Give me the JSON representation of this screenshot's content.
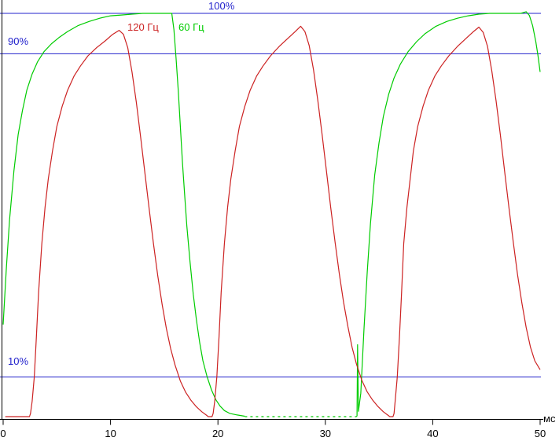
{
  "labels": {
    "line_100": "100%",
    "line_90": "90%",
    "line_10": "10%",
    "axis_unit": "мс"
  },
  "legend": {
    "red": "120 Гц",
    "green": "60 Гц"
  },
  "colors": {
    "reference": "#2222cc",
    "green_series": "#00cc00",
    "red_series": "#cc2222",
    "axis": "#000000"
  },
  "chart_data": {
    "type": "line",
    "title": "",
    "xlabel": "мс",
    "ylabel": "%",
    "x_range": [
      0,
      50
    ],
    "x_ticks": [
      0,
      10,
      20,
      30,
      40,
      50
    ],
    "grid": false,
    "legend_position": "top-left-inline",
    "reference_lines_pct": [
      100,
      90,
      10
    ],
    "series": [
      {
        "id": "60hz",
        "name": "60 Гц",
        "color": "#00cc00",
        "segments": [
          {
            "dash": null,
            "points": [
              [
                0,
                23
              ],
              [
                0.3,
                37
              ],
              [
                0.6,
                49
              ],
              [
                1,
                61
              ],
              [
                1.4,
                70
              ],
              [
                1.8,
                76
              ],
              [
                2.2,
                81
              ],
              [
                2.7,
                85
              ],
              [
                3.2,
                88
              ],
              [
                3.8,
                90.5
              ],
              [
                4.5,
                92.5
              ],
              [
                5.2,
                94
              ],
              [
                6,
                95.5
              ],
              [
                7,
                97
              ],
              [
                8,
                98
              ],
              [
                9,
                98.8
              ],
              [
                10,
                99.4
              ],
              [
                11,
                99.6
              ],
              [
                12,
                99.8
              ],
              [
                13,
                100
              ],
              [
                14,
                100
              ],
              [
                15,
                100
              ],
              [
                15.7,
                100
              ],
              [
                15.9,
                96
              ],
              [
                16.1,
                89
              ],
              [
                16.3,
                81
              ],
              [
                16.5,
                72
              ],
              [
                16.7,
                63
              ],
              [
                16.9,
                55
              ],
              [
                17.1,
                47.5
              ],
              [
                17.4,
                38.5
              ],
              [
                17.7,
                30.5
              ],
              [
                18,
                24
              ],
              [
                18.3,
                18.5
              ],
              [
                18.6,
                14
              ],
              [
                19,
                10
              ],
              [
                19.4,
                6.8
              ],
              [
                19.8,
                4.4
              ],
              [
                20.2,
                2.8
              ],
              [
                20.6,
                1.7
              ],
              [
                21.1,
                1
              ],
              [
                21.8,
                0.6
              ],
              [
                22.5,
                0.3
              ]
            ]
          },
          {
            "dash": "3,4",
            "points": [
              [
                22.5,
                0.2
              ],
              [
                24,
                0.2
              ],
              [
                26,
                0.2
              ],
              [
                28,
                0.2
              ],
              [
                30,
                0.2
              ],
              [
                32,
                0.2
              ],
              [
                32.9,
                0.2
              ]
            ]
          },
          {
            "dash": null,
            "points": [
              [
                32.9,
                0.2
              ],
              [
                32.95,
                0.4
              ],
              [
                33.0,
                18
              ],
              [
                33.08,
                1.5
              ],
              [
                33.3,
                6
              ],
              [
                33.6,
                22
              ],
              [
                33.9,
                36
              ],
              [
                34.2,
                48
              ],
              [
                34.6,
                60
              ],
              [
                35,
                68
              ],
              [
                35.4,
                74.5
              ],
              [
                35.9,
                80
              ],
              [
                36.4,
                84
              ],
              [
                37,
                87.5
              ],
              [
                37.7,
                90.5
              ],
              [
                38.5,
                93
              ],
              [
                39.3,
                95
              ],
              [
                40.3,
                96.8
              ],
              [
                41.3,
                98
              ],
              [
                42.3,
                98.8
              ],
              [
                43.3,
                99.4
              ],
              [
                44.3,
                99.8
              ],
              [
                45.3,
                100
              ],
              [
                46.3,
                100
              ],
              [
                47.3,
                100
              ],
              [
                48.2,
                100
              ],
              [
                48.7,
                100.4
              ],
              [
                49,
                99.5
              ],
              [
                49.3,
                97
              ],
              [
                49.6,
                93
              ],
              [
                49.8,
                89.5
              ],
              [
                50,
                85.5
              ]
            ]
          }
        ]
      },
      {
        "id": "120hz",
        "name": "120 Гц",
        "color": "#cc2222",
        "segments": [
          {
            "dash": null,
            "points": [
              [
                0.2,
                0.2
              ],
              [
                1,
                0.2
              ],
              [
                2,
                0.2
              ],
              [
                2.45,
                0.2
              ],
              [
                2.55,
                1
              ],
              [
                2.7,
                4
              ],
              [
                2.9,
                10
              ],
              [
                3.1,
                20
              ],
              [
                3.3,
                31
              ],
              [
                3.6,
                43
              ],
              [
                3.9,
                52
              ],
              [
                4.2,
                59
              ],
              [
                4.6,
                66
              ],
              [
                5,
                72
              ],
              [
                5.5,
                77
              ],
              [
                6,
                81
              ],
              [
                6.6,
                84.5
              ],
              [
                7.2,
                87
              ],
              [
                7.9,
                89.5
              ],
              [
                8.7,
                91.5
              ],
              [
                9.5,
                93.2
              ],
              [
                10.2,
                94.8
              ],
              [
                10.8,
                95.8
              ],
              [
                11.2,
                94.8
              ],
              [
                11.6,
                91.5
              ],
              [
                12,
                85.5
              ],
              [
                12.4,
                78
              ],
              [
                12.8,
                69.5
              ],
              [
                13.2,
                60.5
              ],
              [
                13.6,
                51.5
              ],
              [
                14,
                43
              ],
              [
                14.4,
                35
              ],
              [
                14.8,
                28
              ],
              [
                15.2,
                22
              ],
              [
                15.6,
                17
              ],
              [
                16,
                13
              ],
              [
                16.5,
                9
              ],
              [
                17,
                6.2
              ],
              [
                17.5,
                4.2
              ],
              [
                18,
                2.6
              ],
              [
                18.5,
                1.4
              ],
              [
                18.9,
                0.6
              ],
              [
                19.1,
                0.2
              ],
              [
                19.45,
                0.2
              ],
              [
                19.55,
                1
              ],
              [
                19.7,
                4
              ],
              [
                19.9,
                10
              ],
              [
                20.1,
                20
              ],
              [
                20.3,
                31
              ],
              [
                20.6,
                43
              ],
              [
                20.9,
                52
              ],
              [
                21.2,
                59
              ],
              [
                21.6,
                66
              ],
              [
                22,
                72
              ],
              [
                22.5,
                77
              ],
              [
                23,
                81
              ],
              [
                23.6,
                84.5
              ],
              [
                24.2,
                87
              ],
              [
                24.9,
                89.5
              ],
              [
                25.7,
                91.8
              ],
              [
                26.5,
                93.8
              ],
              [
                27.2,
                95.5
              ],
              [
                27.7,
                96.8
              ],
              [
                28.1,
                95.5
              ],
              [
                28.5,
                92
              ],
              [
                28.9,
                86
              ],
              [
                29.3,
                78.5
              ],
              [
                29.7,
                70
              ],
              [
                30.1,
                61
              ],
              [
                30.5,
                52
              ],
              [
                30.9,
                43.5
              ],
              [
                31.3,
                35.5
              ],
              [
                31.7,
                28.5
              ],
              [
                32.1,
                22.5
              ],
              [
                32.5,
                17.3
              ],
              [
                32.9,
                13.2
              ],
              [
                33.4,
                9.2
              ],
              [
                33.9,
                6.3
              ],
              [
                34.4,
                4.3
              ],
              [
                34.9,
                2.7
              ],
              [
                35.4,
                1.4
              ],
              [
                35.8,
                0.6
              ],
              [
                36,
                0.2
              ],
              [
                36.3,
                0.2
              ],
              [
                36.4,
                1
              ],
              [
                36.5,
                4
              ],
              [
                36.7,
                10
              ],
              [
                36.9,
                20
              ],
              [
                37.1,
                31
              ],
              [
                37.3,
                43
              ],
              [
                37.6,
                52
              ],
              [
                37.9,
                59
              ],
              [
                38.2,
                66
              ],
              [
                38.6,
                72
              ],
              [
                39.1,
                77
              ],
              [
                39.6,
                81
              ],
              [
                40.2,
                84.5
              ],
              [
                40.8,
                87
              ],
              [
                41.5,
                89.5
              ],
              [
                42.3,
                91.8
              ],
              [
                43.1,
                93.8
              ],
              [
                43.8,
                95.5
              ],
              [
                44.3,
                96.6
              ],
              [
                44.7,
                95.3
              ],
              [
                45.1,
                91.8
              ],
              [
                45.5,
                85.8
              ],
              [
                45.9,
                78.3
              ],
              [
                46.3,
                69.8
              ],
              [
                46.7,
                60.8
              ],
              [
                47.1,
                51.8
              ],
              [
                47.5,
                43.3
              ],
              [
                47.9,
                35.3
              ],
              [
                48.3,
                28.3
              ],
              [
                48.7,
                22.3
              ],
              [
                49.1,
                17.4
              ],
              [
                49.5,
                14
              ],
              [
                50,
                11.8
              ]
            ]
          }
        ]
      }
    ]
  }
}
